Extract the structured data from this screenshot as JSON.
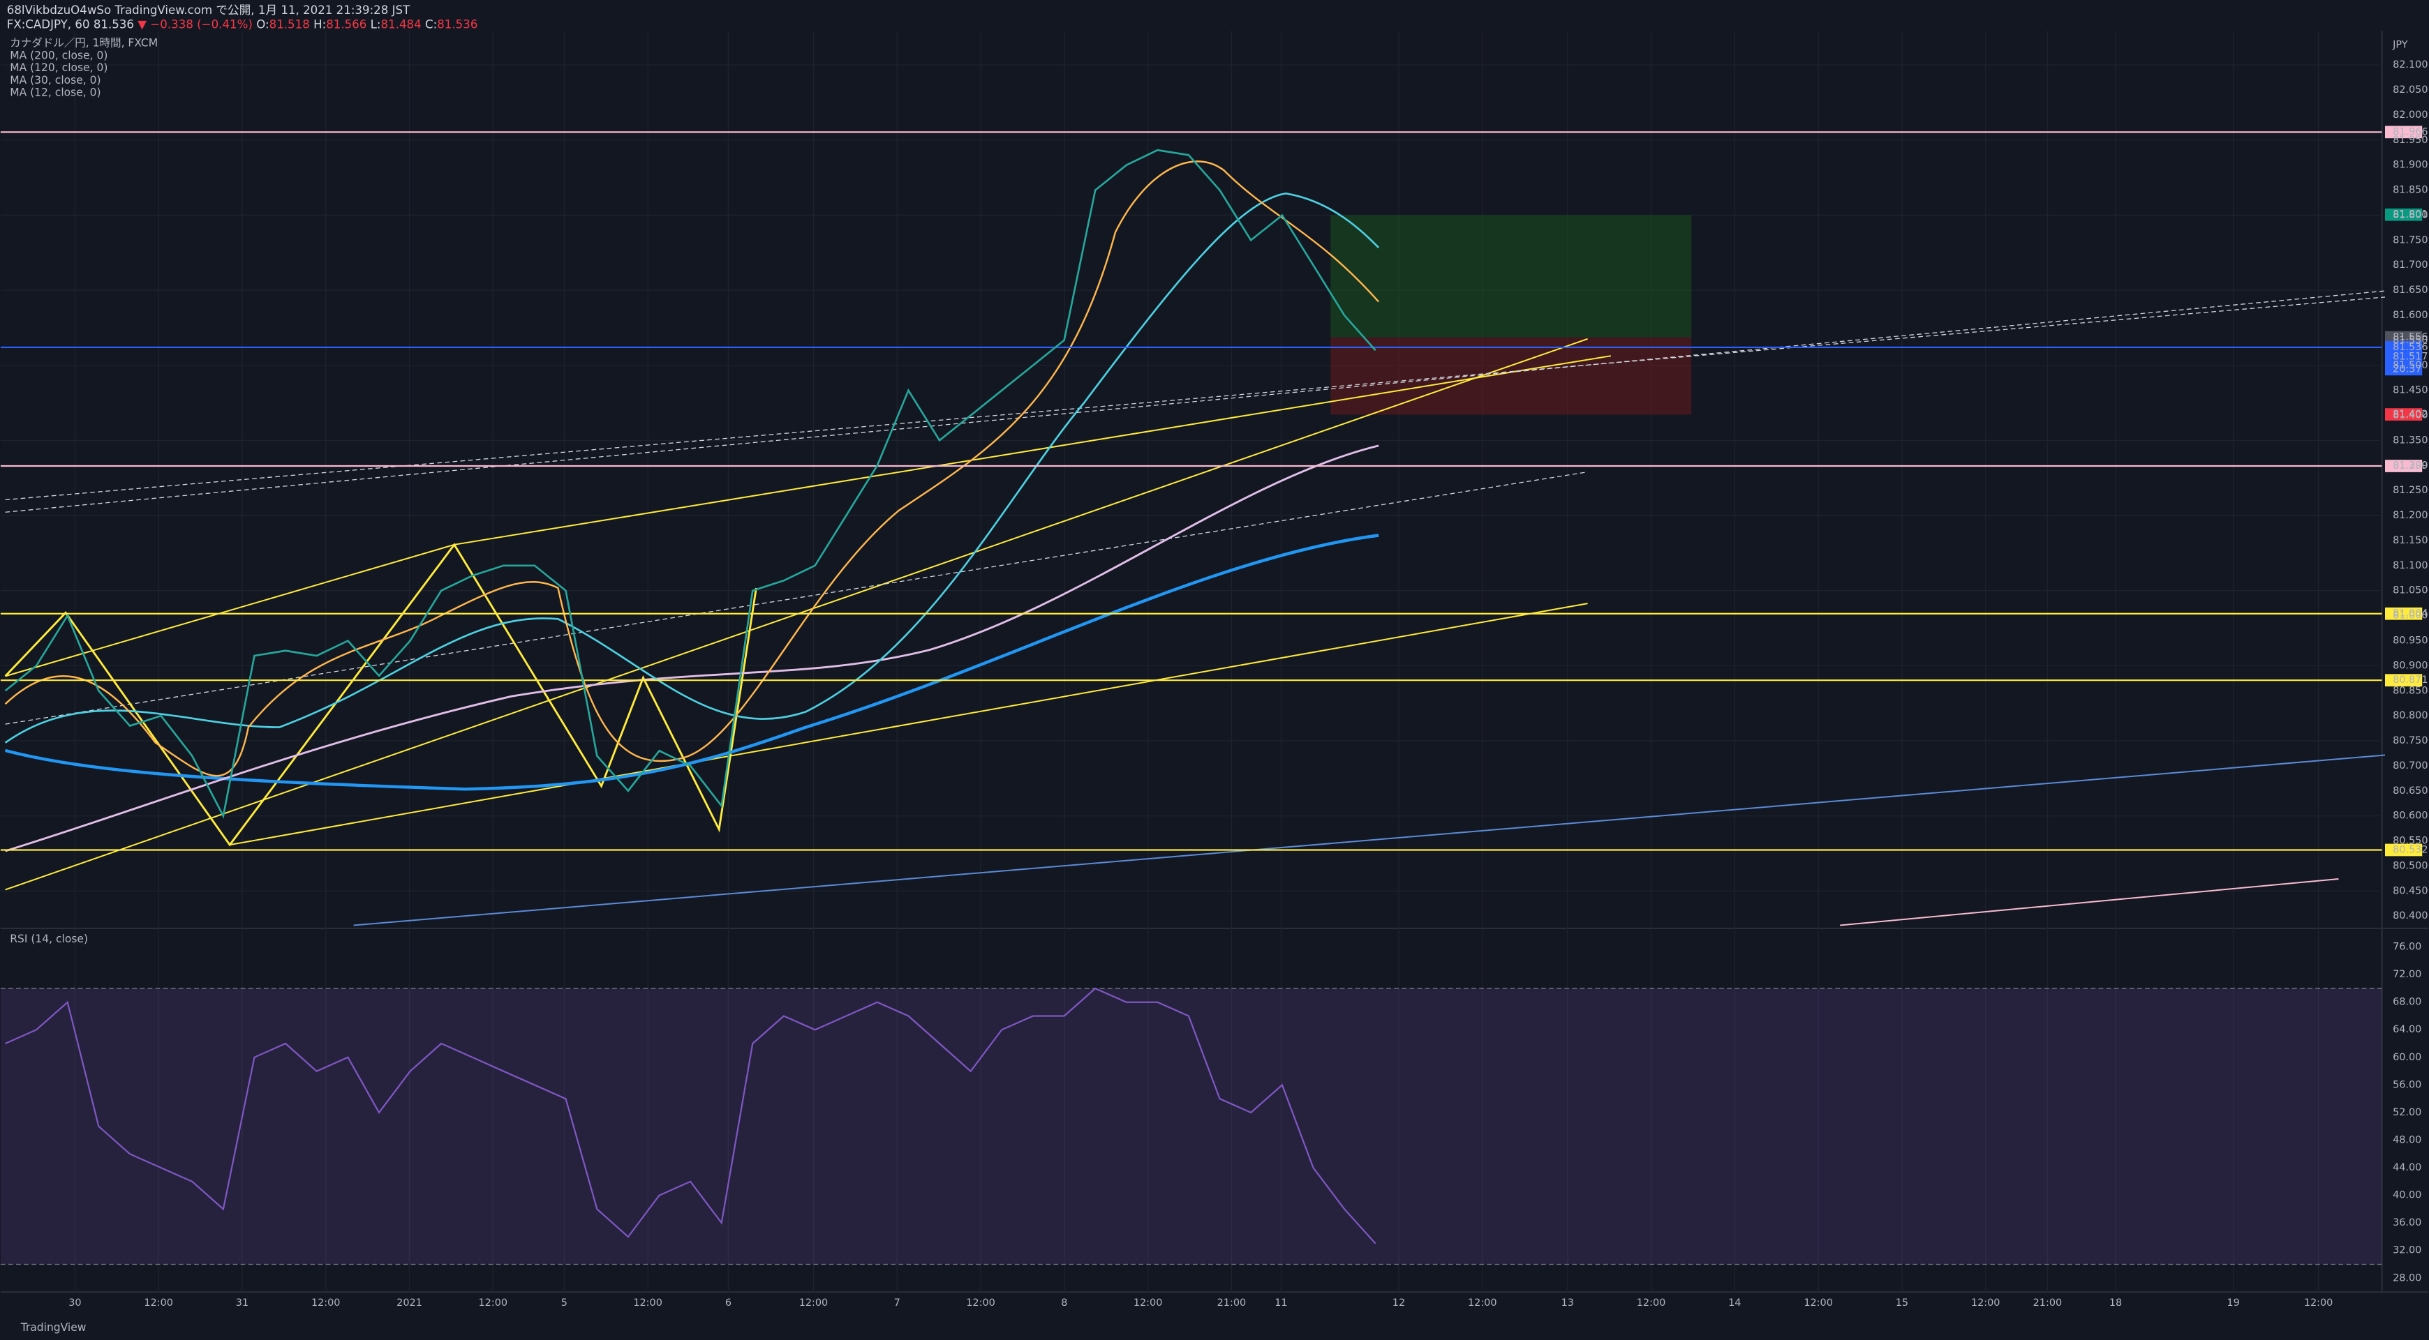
{
  "header": {
    "line1": "68lVikbdzuO4wSo TradingView.com で公開, 1月 11, 2021 21:39:28 JST",
    "symbol": "FX:CADJPY, 60",
    "last": "81.536",
    "change": "▼ −0.338 (−0.41%)",
    "ohlc": [
      {
        "key": "O:",
        "value": "81.518"
      },
      {
        "key": "H:",
        "value": "81.566"
      },
      {
        "key": "L:",
        "value": "81.484"
      },
      {
        "key": "C:",
        "value": "81.536"
      }
    ]
  },
  "legend": [
    "カナダドル／円, 1時間, FXCM",
    "MA (200, close, 0)",
    "MA (120, close, 0)",
    "MA (30, close, 0)",
    "MA (12, close, 0)"
  ],
  "price_axis": {
    "unit": "JPY",
    "ylim": [
      80.4,
      82.1
    ],
    "yticks": [
      {
        "value": 82.1,
        "label": "82.100"
      },
      {
        "value": 82.05,
        "label": "82.050"
      },
      {
        "value": 82.0,
        "label": "82.000"
      },
      {
        "value": 81.95,
        "label": "81.950"
      },
      {
        "value": 81.9,
        "label": "81.900"
      },
      {
        "value": 81.85,
        "label": "81.850"
      },
      {
        "value": 81.8,
        "label": "81.800"
      },
      {
        "value": 81.75,
        "label": "81.750"
      },
      {
        "value": 81.7,
        "label": "81.700"
      },
      {
        "value": 81.65,
        "label": "81.650"
      },
      {
        "value": 81.6,
        "label": "81.600"
      },
      {
        "value": 81.55,
        "label": "81.550"
      },
      {
        "value": 81.5,
        "label": "81.500"
      },
      {
        "value": 81.45,
        "label": "81.450"
      },
      {
        "value": 81.4,
        "label": "81.400"
      },
      {
        "value": 81.35,
        "label": "81.350"
      },
      {
        "value": 81.3,
        "label": "81.300"
      },
      {
        "value": 81.25,
        "label": "81.250"
      },
      {
        "value": 81.2,
        "label": "81.200"
      },
      {
        "value": 81.15,
        "label": "81.150"
      },
      {
        "value": 81.1,
        "label": "81.100"
      },
      {
        "value": 81.05,
        "label": "81.050"
      },
      {
        "value": 81.0,
        "label": "81.000"
      },
      {
        "value": 80.95,
        "label": "80.950"
      },
      {
        "value": 80.9,
        "label": "80.900"
      },
      {
        "value": 80.85,
        "label": "80.850"
      },
      {
        "value": 80.8,
        "label": "80.800"
      },
      {
        "value": 80.75,
        "label": "80.750"
      },
      {
        "value": 80.7,
        "label": "80.700"
      },
      {
        "value": 80.65,
        "label": "80.650"
      },
      {
        "value": 80.6,
        "label": "80.600"
      },
      {
        "value": 80.55,
        "label": "80.550"
      },
      {
        "value": 80.5,
        "label": "80.500"
      },
      {
        "value": 80.45,
        "label": "80.450"
      },
      {
        "value": 80.4,
        "label": "80.400"
      }
    ]
  },
  "levels": [
    {
      "value": 81.966,
      "label": "81.966",
      "color": "#f8bbd0",
      "line": true
    },
    {
      "value": 81.801,
      "label": "81.801",
      "color": "#089981",
      "line": false
    },
    {
      "value": 81.556,
      "label": "81.556",
      "color": "#50535e",
      "line": false
    },
    {
      "value": 81.536,
      "label": "81.536",
      "color": "#2962ff",
      "line": true
    },
    {
      "value": 81.517,
      "label": "81.517",
      "color": "#2962ff",
      "line": false
    },
    {
      "value": 81.402,
      "label": "81.402",
      "color": "#f23645",
      "line": false
    },
    {
      "value": 81.299,
      "label": "81.299",
      "color": "#f8bbd0",
      "line": true
    },
    {
      "value": 81.004,
      "label": "81.004",
      "color": "#ffeb3b",
      "line": true
    },
    {
      "value": 80.871,
      "label": "80.871",
      "color": "#ffeb3b",
      "line": true
    },
    {
      "value": 80.532,
      "label": "80.532",
      "color": "#ffeb3b",
      "line": true
    }
  ],
  "countdown": "20:37",
  "close_approx": [
    80.85,
    80.9,
    81.0,
    80.85,
    80.78,
    80.8,
    80.72,
    80.6,
    80.92,
    80.93,
    80.92,
    80.95,
    80.88,
    80.95,
    81.05,
    81.08,
    81.1,
    81.1,
    81.05,
    80.72,
    80.65,
    80.73,
    80.7,
    80.62,
    81.05,
    81.07,
    81.1,
    81.2,
    81.3,
    81.45,
    81.35,
    81.4,
    81.45,
    81.5,
    81.55,
    81.85,
    81.9,
    81.93,
    81.92,
    81.85,
    81.75,
    81.8,
    81.7,
    81.6,
    81.53
  ],
  "rsi": {
    "title": "RSI (14, close)",
    "ylim": [
      28,
      76
    ],
    "upper": 70,
    "lower": 30,
    "yticks": [
      {
        "value": 76,
        "label": "76.00"
      },
      {
        "value": 72,
        "label": "72.00"
      },
      {
        "value": 68,
        "label": "68.00"
      },
      {
        "value": 64,
        "label": "64.00"
      },
      {
        "value": 60,
        "label": "60.00"
      },
      {
        "value": 56,
        "label": "56.00"
      },
      {
        "value": 52,
        "label": "52.00"
      },
      {
        "value": 48,
        "label": "48.00"
      },
      {
        "value": 44,
        "label": "44.00"
      },
      {
        "value": 40,
        "label": "40.00"
      },
      {
        "value": 36,
        "label": "36.00"
      },
      {
        "value": 32,
        "label": "32.00"
      },
      {
        "value": 28,
        "label": "28.00"
      }
    ],
    "values": [
      62,
      64,
      68,
      50,
      46,
      44,
      42,
      38,
      60,
      62,
      58,
      60,
      52,
      58,
      62,
      60,
      58,
      56,
      54,
      38,
      34,
      40,
      42,
      36,
      62,
      66,
      64,
      66,
      68,
      66,
      62,
      58,
      64,
      66,
      66,
      70,
      68,
      68,
      66,
      54,
      52,
      56,
      44,
      38,
      33
    ]
  },
  "time_axis": [
    "30",
    "12:00",
    "31",
    "12:00",
    "2021",
    "12:00",
    "5",
    "12:00",
    "6",
    "12:00",
    "7",
    "12:00",
    "8",
    "12:00",
    "21:00",
    "11",
    "12",
    "12:00",
    "13",
    "12:00",
    "14",
    "12:00",
    "15",
    "12:00",
    "21:00",
    "18",
    "19",
    "12:00"
  ],
  "brand": "TradingView"
}
